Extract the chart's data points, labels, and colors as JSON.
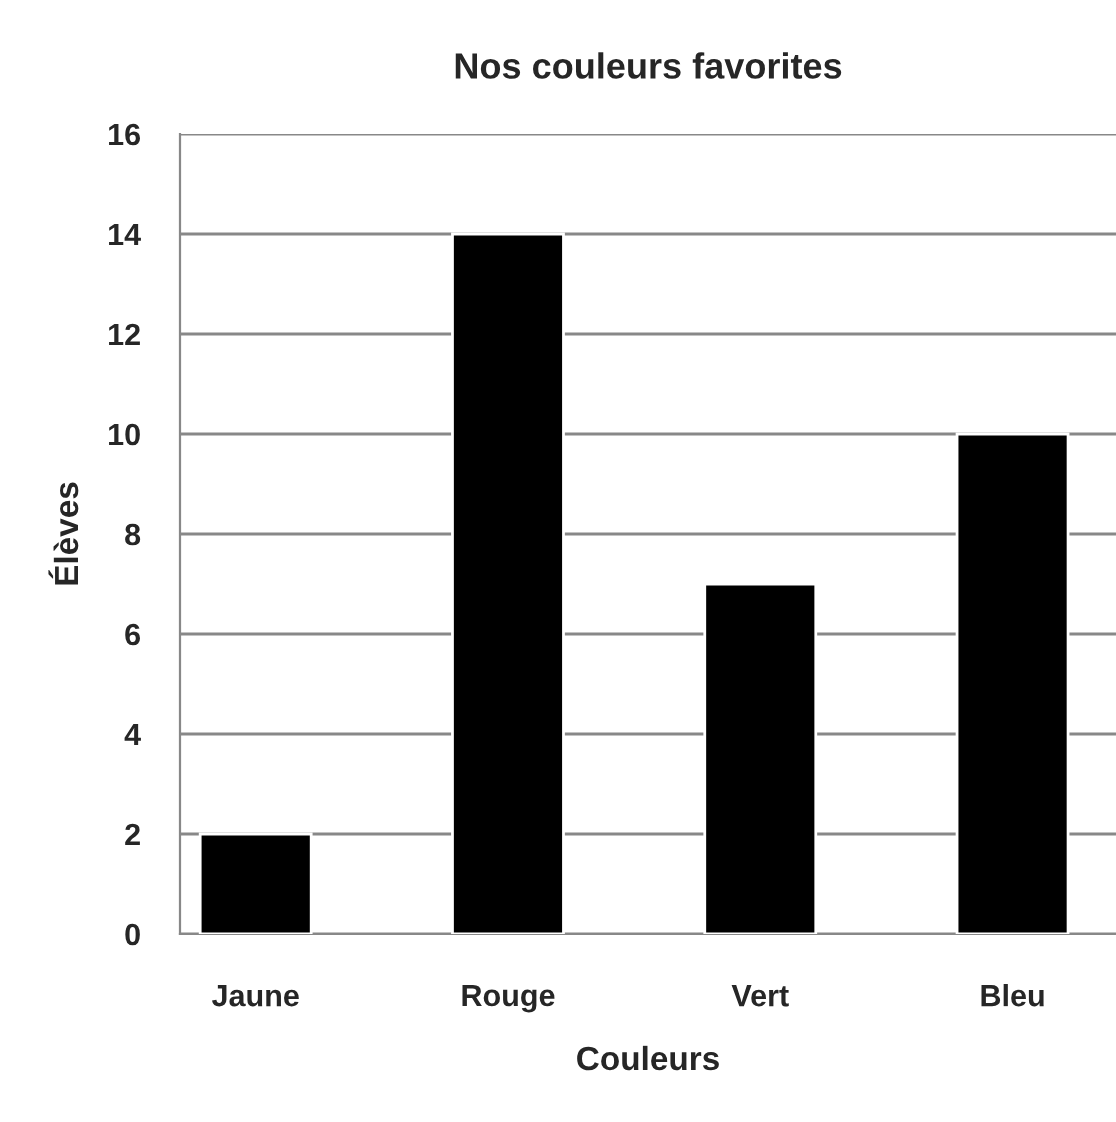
{
  "chart_data": {
    "type": "bar",
    "title": "Nos couleurs favorites",
    "xlabel": "Couleurs",
    "ylabel": "Élèves",
    "categories": [
      "Jaune",
      "Rouge",
      "Vert",
      "Bleu"
    ],
    "values": [
      2,
      14,
      7,
      10
    ],
    "color": "#000000",
    "ylim": [
      0,
      16
    ],
    "yticks": [
      0,
      2,
      4,
      6,
      8,
      10,
      12,
      14,
      16
    ],
    "grid": "y"
  }
}
